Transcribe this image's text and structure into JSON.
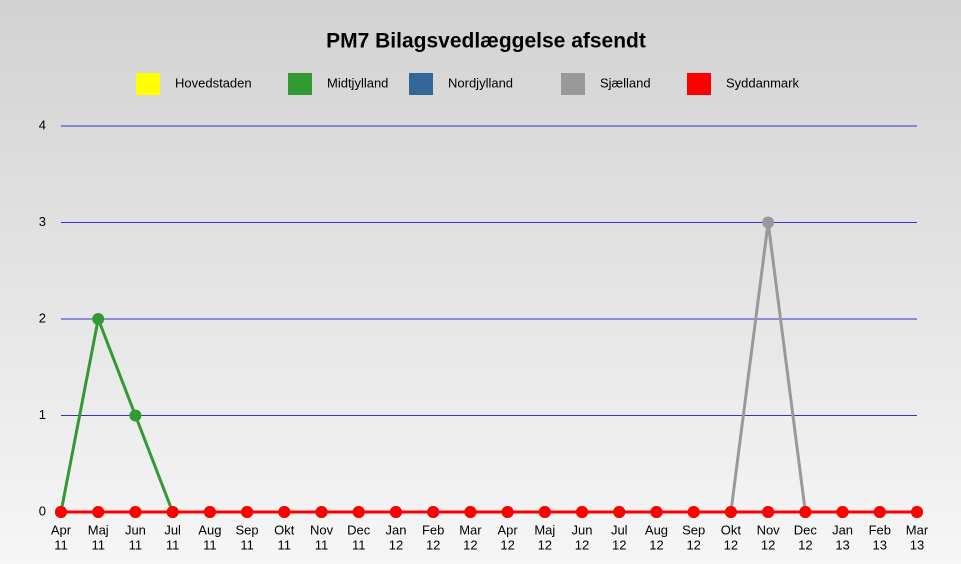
{
  "chart_data": {
    "type": "line",
    "title": "PM7 Bilagsvedlæggelse afsendt",
    "categories": [
      [
        "Apr",
        "11"
      ],
      [
        "Maj",
        "11"
      ],
      [
        "Jun",
        "11"
      ],
      [
        "Jul",
        "11"
      ],
      [
        "Aug",
        "11"
      ],
      [
        "Sep",
        "11"
      ],
      [
        "Okt",
        "11"
      ],
      [
        "Nov",
        "11"
      ],
      [
        "Dec",
        "11"
      ],
      [
        "Jan",
        "12"
      ],
      [
        "Feb",
        "12"
      ],
      [
        "Mar",
        "12"
      ],
      [
        "Apr",
        "12"
      ],
      [
        "Maj",
        "12"
      ],
      [
        "Jun",
        "12"
      ],
      [
        "Jul",
        "12"
      ],
      [
        "Aug",
        "12"
      ],
      [
        "Sep",
        "12"
      ],
      [
        "Okt",
        "12"
      ],
      [
        "Nov",
        "12"
      ],
      [
        "Dec",
        "12"
      ],
      [
        "Jan",
        "13"
      ],
      [
        "Feb",
        "13"
      ],
      [
        "Mar",
        "13"
      ]
    ],
    "series": [
      {
        "name": "Hovedstaden",
        "color": "#ffff00",
        "values": [
          0,
          0,
          0,
          0,
          0,
          0,
          0,
          0,
          0,
          0,
          0,
          0,
          0,
          0,
          0,
          0,
          0,
          0,
          0,
          0,
          0,
          0,
          0,
          0
        ]
      },
      {
        "name": "Midtjylland",
        "color": "#339933",
        "values": [
          0,
          2,
          1,
          0,
          0,
          0,
          0,
          0,
          0,
          0,
          0,
          0,
          0,
          0,
          0,
          0,
          0,
          0,
          0,
          0,
          0,
          0,
          0,
          0
        ]
      },
      {
        "name": "Nordjylland",
        "color": "#336699",
        "values": [
          0,
          0,
          0,
          0,
          0,
          0,
          0,
          0,
          0,
          0,
          0,
          0,
          0,
          0,
          0,
          0,
          0,
          0,
          0,
          0,
          0,
          0,
          0,
          0
        ]
      },
      {
        "name": "Sjælland",
        "color": "#999999",
        "values": [
          0,
          0,
          0,
          0,
          0,
          0,
          0,
          0,
          0,
          0,
          0,
          0,
          0,
          0,
          0,
          0,
          0,
          0,
          0,
          3,
          0,
          0,
          0,
          0
        ]
      },
      {
        "name": "Syddanmark",
        "color": "#ff0000",
        "values": [
          0,
          0,
          0,
          0,
          0,
          0,
          0,
          0,
          0,
          0,
          0,
          0,
          0,
          0,
          0,
          0,
          0,
          0,
          0,
          0,
          0,
          0,
          0,
          0
        ]
      }
    ],
    "ylim": [
      0,
      4
    ],
    "yticks": [
      0,
      1,
      2,
      3,
      4
    ],
    "grid": true,
    "grid_color": "#3333cc",
    "legend": "top"
  }
}
